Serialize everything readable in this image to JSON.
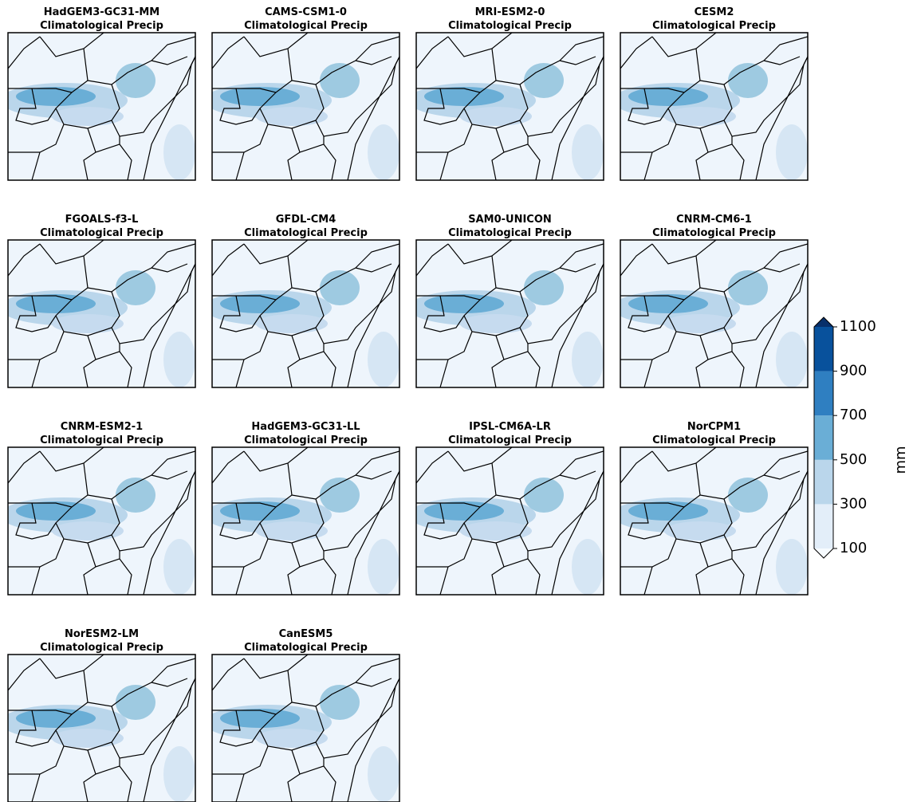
{
  "panels": [
    {
      "title": "HadGEM3-GC31-MM",
      "subtitle": "Climatological Precip"
    },
    {
      "title": "CAMS-CSM1-0",
      "subtitle": "Climatological Precip"
    },
    {
      "title": "MRI-ESM2-0",
      "subtitle": "Climatological Precip"
    },
    {
      "title": "CESM2",
      "subtitle": "Climatological Precip"
    },
    {
      "title": "FGOALS-f3-L",
      "subtitle": "Climatological Precip"
    },
    {
      "title": "GFDL-CM4",
      "subtitle": "Climatological Precip"
    },
    {
      "title": "SAM0-UNICON",
      "subtitle": "Climatological Precip"
    },
    {
      "title": "CNRM-CM6-1",
      "subtitle": "Climatological Precip"
    },
    {
      "title": "CNRM-ESM2-1",
      "subtitle": "Climatological Precip"
    },
    {
      "title": "HadGEM3-GC31-LL",
      "subtitle": "Climatological Precip"
    },
    {
      "title": "IPSL-CM6A-LR",
      "subtitle": "Climatological Precip"
    },
    {
      "title": "NorCPM1",
      "subtitle": "Climatological Precip"
    },
    {
      "title": "NorESM2-LM",
      "subtitle": "Climatological Precip"
    },
    {
      "title": "CanESM5",
      "subtitle": "Climatological Precip"
    }
  ],
  "colorbar": {
    "label": "mm",
    "ticks": [
      100,
      300,
      500,
      700,
      900,
      1100
    ],
    "colors": [
      "#e3eef9",
      "#bad6eb",
      "#6aaed6",
      "#2f7fc1",
      "#08519c"
    ],
    "under_color": "#f7fbff",
    "over_color": "#08306b"
  }
}
